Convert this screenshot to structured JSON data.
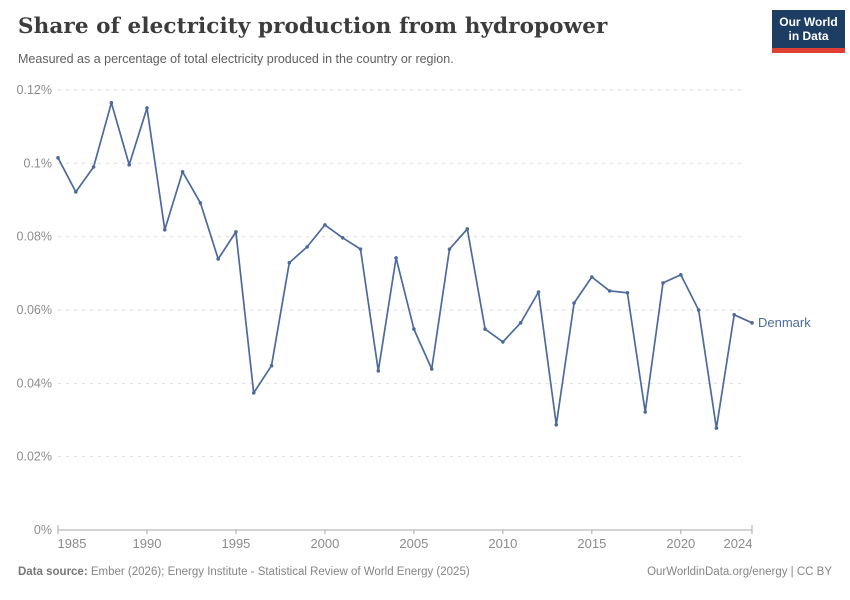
{
  "header": {
    "title": "Share of electricity production from hydropower",
    "subtitle": "Measured as a percentage of total electricity produced in the country or region.",
    "logo": {
      "line1": "Our World",
      "line2": "in Data",
      "navy": "#1D3D63",
      "red": "#E04034"
    }
  },
  "chart_data": {
    "type": "line",
    "title": "Share of electricity production from hydropower",
    "xlabel": "",
    "ylabel": "",
    "xlim": [
      1985,
      2024
    ],
    "ylim": [
      0,
      0.12
    ],
    "grid": true,
    "legend_position": "end-of-line",
    "x": [
      1985,
      1986,
      1987,
      1988,
      1989,
      1990,
      1991,
      1992,
      1993,
      1994,
      1995,
      1996,
      1997,
      1998,
      1999,
      2000,
      2001,
      2002,
      2003,
      2004,
      2005,
      2006,
      2007,
      2008,
      2009,
      2010,
      2011,
      2012,
      2013,
      2014,
      2015,
      2016,
      2017,
      2018,
      2019,
      2020,
      2021,
      2022,
      2023,
      2024
    ],
    "series": [
      {
        "name": "Denmark",
        "color": "#4C6A9C",
        "values": [
          0.1015,
          0.0922,
          0.099,
          0.1165,
          0.0996,
          0.1151,
          0.0819,
          0.0977,
          0.0892,
          0.0739,
          0.0813,
          0.0374,
          0.0448,
          0.0729,
          0.0772,
          0.0832,
          0.0797,
          0.0766,
          0.0434,
          0.0742,
          0.0548,
          0.0439,
          0.0766,
          0.0821,
          0.0548,
          0.0513,
          0.0565,
          0.0649,
          0.0287,
          0.0619,
          0.069,
          0.0652,
          0.0647,
          0.0322,
          0.0674,
          0.0696,
          0.06,
          0.0278,
          0.0587,
          0.0565
        ]
      }
    ],
    "y_ticks": [
      {
        "value": 0.0,
        "label": "0%"
      },
      {
        "value": 0.02,
        "label": "0.02%"
      },
      {
        "value": 0.04,
        "label": "0.04%"
      },
      {
        "value": 0.06,
        "label": "0.06%"
      },
      {
        "value": 0.08,
        "label": "0.08%"
      },
      {
        "value": 0.1,
        "label": "0.1%"
      },
      {
        "value": 0.12,
        "label": "0.12%"
      }
    ],
    "x_ticks": [
      1985,
      1990,
      1995,
      2000,
      2005,
      2010,
      2015,
      2020,
      2024
    ],
    "colors": {
      "grid": "#dddddd",
      "axis": "#a8a8a8",
      "tick_label": "#8c8c8c"
    }
  },
  "footer": {
    "datasource_label": "Data source:",
    "datasource_text": " Ember (2026); Energy Institute - Statistical Review of World Energy (2025)",
    "attribution": "OurWorldinData.org/energy | CC BY"
  }
}
